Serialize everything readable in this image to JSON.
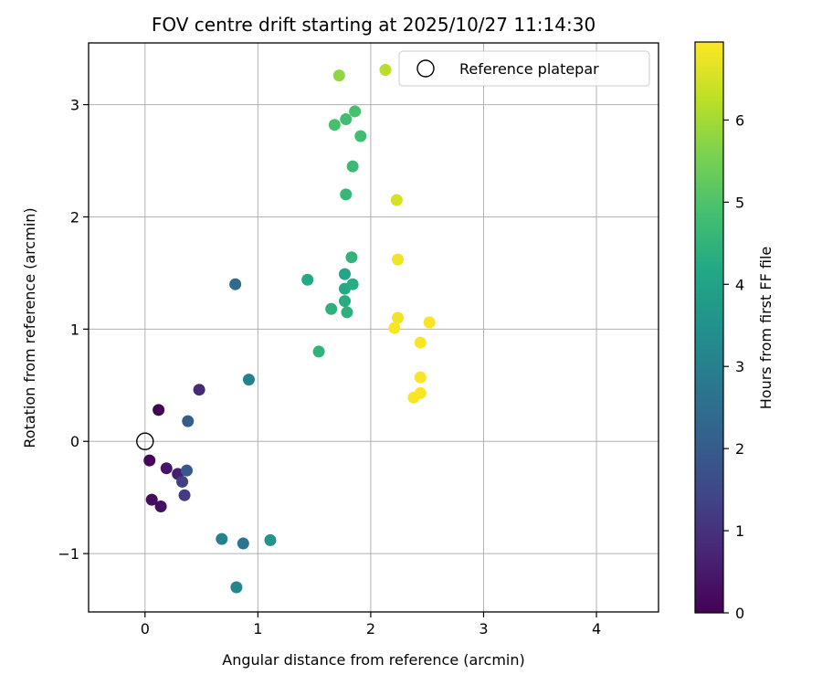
{
  "chart_data": {
    "type": "scatter",
    "title": "FOV centre drift starting at 2025/10/27 11:14:30",
    "xlabel": "Angular distance from reference (arcmin)",
    "ylabel": "Rotation from reference (arcmin)",
    "xlim": [
      -0.5,
      4.55
    ],
    "ylim": [
      -1.52,
      3.55
    ],
    "xticks": [
      0,
      1,
      2,
      3,
      4
    ],
    "yticks": [
      -1,
      0,
      1,
      2,
      3
    ],
    "xtick_labels": [
      "0",
      "1",
      "2",
      "3",
      "4"
    ],
    "ytick_labels": [
      "−1",
      "0",
      "1",
      "2",
      "3"
    ],
    "grid": true,
    "colormap": "viridis",
    "colorbar": {
      "label": "Hours from first FF file",
      "range": [
        0,
        6.95
      ],
      "ticks": [
        0,
        1,
        2,
        3,
        4,
        5,
        6
      ],
      "tick_labels": [
        "0",
        "1",
        "2",
        "3",
        "4",
        "5",
        "6"
      ]
    },
    "legend": {
      "position": "top-right",
      "entries": [
        "Reference platepar"
      ]
    },
    "reference": {
      "x": 0,
      "y": 0,
      "label": "Reference platepar"
    },
    "points": [
      {
        "x": 0.04,
        "y": -0.17,
        "t": 0.1
      },
      {
        "x": 0.06,
        "y": -0.52,
        "t": 0.2
      },
      {
        "x": 0.14,
        "y": -0.58,
        "t": 0.3
      },
      {
        "x": 0.12,
        "y": 0.28,
        "t": 0.05
      },
      {
        "x": 0.19,
        "y": -0.24,
        "t": 0.4
      },
      {
        "x": 0.29,
        "y": -0.29,
        "t": 0.6
      },
      {
        "x": 0.48,
        "y": 0.46,
        "t": 0.8
      },
      {
        "x": 0.33,
        "y": -0.36,
        "t": 1.3
      },
      {
        "x": 0.35,
        "y": -0.48,
        "t": 1.2
      },
      {
        "x": 0.37,
        "y": -0.26,
        "t": 1.9
      },
      {
        "x": 0.38,
        "y": 0.18,
        "t": 2.0
      },
      {
        "x": 0.8,
        "y": 1.4,
        "t": 2.4
      },
      {
        "x": 0.92,
        "y": 0.55,
        "t": 3.0
      },
      {
        "x": 0.68,
        "y": -0.87,
        "t": 3.0
      },
      {
        "x": 0.87,
        "y": -0.91,
        "t": 2.7
      },
      {
        "x": 0.81,
        "y": -1.3,
        "t": 3.1
      },
      {
        "x": 1.11,
        "y": -0.88,
        "t": 3.6
      },
      {
        "x": 1.44,
        "y": 1.44,
        "t": 4.2
      },
      {
        "x": 1.54,
        "y": 0.8,
        "t": 4.5
      },
      {
        "x": 1.65,
        "y": 1.18,
        "t": 4.4
      },
      {
        "x": 1.77,
        "y": 1.49,
        "t": 4.1
      },
      {
        "x": 1.77,
        "y": 1.36,
        "t": 4.2
      },
      {
        "x": 1.77,
        "y": 1.25,
        "t": 4.3
      },
      {
        "x": 1.79,
        "y": 1.15,
        "t": 4.4
      },
      {
        "x": 1.84,
        "y": 1.4,
        "t": 4.3
      },
      {
        "x": 1.83,
        "y": 1.64,
        "t": 4.5
      },
      {
        "x": 1.78,
        "y": 2.2,
        "t": 4.6
      },
      {
        "x": 1.84,
        "y": 2.45,
        "t": 4.7
      },
      {
        "x": 1.91,
        "y": 2.72,
        "t": 4.8
      },
      {
        "x": 1.68,
        "y": 2.82,
        "t": 4.9
      },
      {
        "x": 1.78,
        "y": 2.87,
        "t": 4.8
      },
      {
        "x": 1.86,
        "y": 2.94,
        "t": 4.9
      },
      {
        "x": 1.72,
        "y": 3.26,
        "t": 5.8
      },
      {
        "x": 2.13,
        "y": 3.31,
        "t": 6.2
      },
      {
        "x": 2.23,
        "y": 2.15,
        "t": 6.5
      },
      {
        "x": 2.24,
        "y": 1.62,
        "t": 6.8
      },
      {
        "x": 2.24,
        "y": 1.1,
        "t": 6.8
      },
      {
        "x": 2.21,
        "y": 1.01,
        "t": 6.9
      },
      {
        "x": 2.52,
        "y": 1.06,
        "t": 6.9
      },
      {
        "x": 2.44,
        "y": 0.88,
        "t": 6.9
      },
      {
        "x": 2.44,
        "y": 0.57,
        "t": 6.9
      },
      {
        "x": 2.44,
        "y": 0.43,
        "t": 6.9
      },
      {
        "x": 2.38,
        "y": 0.39,
        "t": 6.9
      }
    ]
  }
}
